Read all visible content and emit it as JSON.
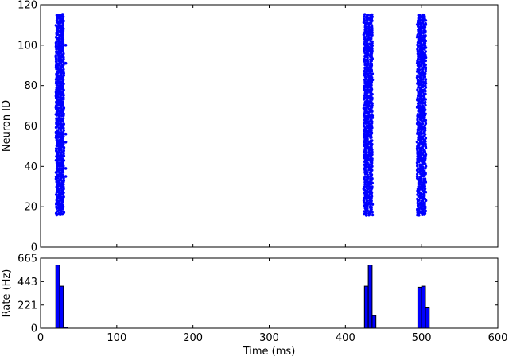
{
  "chart_data": [
    {
      "type": "scatter",
      "title": "",
      "xlabel": "",
      "ylabel": "Neuron ID",
      "xlim": [
        0,
        600
      ],
      "ylim": [
        0,
        120
      ],
      "x_ticks": [],
      "y_ticks": [
        0,
        20,
        40,
        60,
        80,
        100,
        120
      ],
      "color": "#0000ff",
      "grid": false,
      "bursts": [
        {
          "x_start": 20,
          "x_end": 31,
          "neuron_min": 16,
          "neuron_max": 115,
          "stragglers": [
            [
              33,
              100
            ],
            [
              33,
              91
            ],
            [
              33,
              56
            ],
            [
              33,
              52
            ],
            [
              33,
              39
            ],
            [
              33,
              35
            ]
          ]
        },
        {
          "x_start": 424,
          "x_end": 436,
          "neuron_min": 16,
          "neuron_max": 115,
          "stragglers": []
        },
        {
          "x_start": 494,
          "x_end": 506,
          "neuron_min": 16,
          "neuron_max": 115,
          "stragglers": []
        }
      ]
    },
    {
      "type": "bar",
      "title": "",
      "xlabel": "Time (ms)",
      "ylabel": "Rate (Hz)",
      "xlim": [
        0,
        600
      ],
      "ylim": [
        0,
        665
      ],
      "x_ticks": [
        0,
        100,
        200,
        300,
        400,
        500,
        600
      ],
      "y_ticks": [
        0,
        221,
        443,
        665
      ],
      "bin_width": 5,
      "color": "#0000ff",
      "grid": false,
      "bins": [
        {
          "x": 20,
          "value": 600
        },
        {
          "x": 25,
          "value": 400
        },
        {
          "x": 30,
          "value": 10
        },
        {
          "x": 425,
          "value": 400
        },
        {
          "x": 430,
          "value": 600
        },
        {
          "x": 435,
          "value": 120
        },
        {
          "x": 495,
          "value": 390
        },
        {
          "x": 500,
          "value": 400
        },
        {
          "x": 505,
          "value": 200
        }
      ]
    }
  ]
}
